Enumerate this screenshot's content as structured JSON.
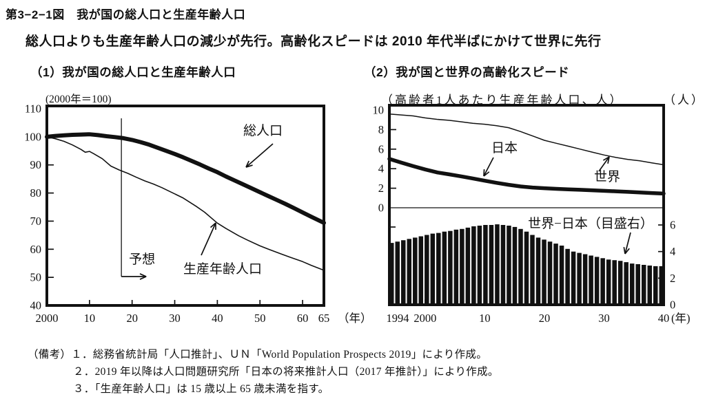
{
  "figure": {
    "title": "第3−2−1図　我が国の総人口と生産年齢人口",
    "subtitle": "総人口よりも生産年齢人口の減少が先行。高齢化スピードは 2010 年代半ばにかけて世界に先行",
    "notes": [
      "（備考）１．総務省統計局「人口推計」、ＵＮ「World Population Prospects 2019」により作成。",
      "２．2019 年以降は人口問題研究所「日本の将来推計人口（2017 年推計）」により作成。",
      "３．「生産年齢人口」は 15 歳以上 65 歳未満を指す。"
    ]
  },
  "chart_data": [
    {
      "id": "japan-population-index",
      "type": "line",
      "title": "（1）我が国の総人口と生産年齢人口",
      "unit_label": "(2000年＝100)",
      "x_axis_unit": "（年）",
      "xlim": [
        2000,
        2065
      ],
      "ylim": [
        40,
        110
      ],
      "grid": false,
      "y_ticks": [
        110,
        100,
        90,
        80,
        70,
        60,
        50,
        40
      ],
      "x_ticks": [
        {
          "year": 2000,
          "label": "2000"
        },
        {
          "year": 2010,
          "label": "10"
        },
        {
          "year": 2020,
          "label": "20"
        },
        {
          "year": 2030,
          "label": "30"
        },
        {
          "year": 2040,
          "label": "40"
        },
        {
          "year": 2050,
          "label": "50"
        },
        {
          "year": 2060,
          "label": "60"
        },
        {
          "year": 2065,
          "label": "65"
        }
      ],
      "forecast_annotation": {
        "label": "予想",
        "start_year": 2017
      },
      "series": [
        {
          "name": "総人口",
          "style": "thick",
          "x": [
            2000,
            2002,
            2004,
            2006,
            2008,
            2010,
            2012,
            2014,
            2016,
            2018,
            2020,
            2022,
            2024,
            2026,
            2028,
            2030,
            2032,
            2034,
            2036,
            2038,
            2040,
            2042,
            2044,
            2046,
            2048,
            2050,
            2052,
            2054,
            2056,
            2058,
            2060,
            2062,
            2065
          ],
          "values": [
            100,
            100.3,
            100.5,
            100.7,
            100.8,
            100.9,
            100.6,
            100.2,
            99.9,
            99.5,
            98.9,
            98.1,
            97.2,
            96.1,
            95.0,
            93.9,
            92.7,
            91.4,
            90.1,
            88.7,
            87.4,
            85.9,
            84.5,
            83.1,
            81.7,
            80.3,
            78.9,
            77.5,
            76.1,
            74.6,
            73.1,
            71.6,
            69.4
          ]
        },
        {
          "name": "生産年齢人口",
          "style": "thin",
          "x": [
            2000,
            2002,
            2004,
            2006,
            2008,
            2009,
            2010,
            2011,
            2013,
            2015,
            2017,
            2019,
            2021,
            2023,
            2025,
            2027,
            2030,
            2032,
            2035,
            2037,
            2040,
            2042,
            2045,
            2047,
            2050,
            2052,
            2055,
            2057,
            2060,
            2062,
            2065
          ],
          "values": [
            100,
            99.3,
            98.4,
            97.1,
            95.5,
            94.5,
            94.8,
            94.0,
            92.2,
            89.6,
            88.2,
            87.0,
            85.6,
            84.3,
            83.2,
            81.9,
            79.7,
            78.2,
            75.3,
            73.2,
            69.3,
            67.4,
            64.8,
            63.3,
            61.2,
            60.0,
            58.3,
            57.2,
            55.6,
            54.3,
            52.5
          ]
        }
      ]
    },
    {
      "id": "aging-speed-japan-world",
      "type": "line+bar",
      "title": "（2）我が国と世界の高齢化スピード",
      "unit_label": "（高齢者1人あたり生産年齢人口、人）",
      "right_axis_unit_label": "（人）",
      "x_axis_unit": "(年)",
      "xlim": [
        1994,
        2040
      ],
      "left_ylim": [
        0,
        10
      ],
      "right_ylim": [
        0,
        6
      ],
      "grid": false,
      "left_y_ticks": [
        10,
        8,
        6,
        4,
        2,
        0
      ],
      "right_y_ticks": [
        6,
        4,
        2,
        0
      ],
      "x_ticks": [
        {
          "year": 1994,
          "label": "1994"
        },
        {
          "year": 2000,
          "label": "2000"
        },
        {
          "year": 2010,
          "label": "10"
        },
        {
          "year": 2020,
          "label": "20"
        },
        {
          "year": 2030,
          "label": "30"
        },
        {
          "year": 2040,
          "label": "40"
        }
      ],
      "series": [
        {
          "name": "日本",
          "style": "thick",
          "axis": "left",
          "x": [
            1994,
            1996,
            1998,
            2000,
            2002,
            2004,
            2006,
            2008,
            2010,
            2012,
            2014,
            2016,
            2018,
            2020,
            2022,
            2024,
            2026,
            2028,
            2030,
            2032,
            2034,
            2036,
            2038,
            2040
          ],
          "values": [
            5.0,
            4.62,
            4.26,
            3.92,
            3.62,
            3.42,
            3.22,
            3.0,
            2.77,
            2.55,
            2.35,
            2.18,
            2.07,
            2.0,
            1.94,
            1.89,
            1.84,
            1.79,
            1.73,
            1.68,
            1.63,
            1.57,
            1.51,
            1.45
          ]
        },
        {
          "name": "世界",
          "style": "thin",
          "axis": "left",
          "x": [
            1994,
            1996,
            1998,
            2000,
            2002,
            2004,
            2006,
            2008,
            2010,
            2012,
            2014,
            2016,
            2018,
            2020,
            2022,
            2024,
            2026,
            2028,
            2030,
            2032,
            2034,
            2036,
            2038,
            2040
          ],
          "values": [
            9.6,
            9.5,
            9.4,
            9.2,
            9.05,
            8.95,
            8.8,
            8.65,
            8.55,
            8.4,
            8.2,
            7.8,
            7.35,
            6.9,
            6.6,
            6.3,
            6.0,
            5.7,
            5.4,
            5.15,
            4.95,
            4.8,
            4.6,
            4.4
          ]
        }
      ],
      "bar_series": {
        "name": "世界−日本（目盛右）",
        "axis": "right",
        "x": [
          1994,
          1995,
          1996,
          1997,
          1998,
          1999,
          2000,
          2001,
          2002,
          2003,
          2004,
          2005,
          2006,
          2007,
          2008,
          2009,
          2010,
          2011,
          2012,
          2013,
          2014,
          2015,
          2016,
          2017,
          2018,
          2019,
          2020,
          2021,
          2022,
          2023,
          2024,
          2025,
          2026,
          2027,
          2028,
          2029,
          2030,
          2031,
          2032,
          2033,
          2034,
          2035,
          2036,
          2037,
          2038,
          2039,
          2040
        ],
        "values": [
          4.65,
          4.75,
          4.85,
          4.95,
          5.05,
          5.15,
          5.25,
          5.35,
          5.4,
          5.5,
          5.55,
          5.65,
          5.7,
          5.8,
          5.9,
          5.95,
          6.0,
          6.0,
          6.05,
          6.0,
          5.95,
          5.85,
          5.7,
          5.5,
          5.25,
          5.05,
          4.9,
          4.75,
          4.6,
          4.45,
          4.2,
          4.0,
          3.9,
          3.8,
          3.7,
          3.6,
          3.5,
          3.4,
          3.35,
          3.3,
          3.2,
          3.1,
          3.05,
          3.0,
          2.95,
          2.9,
          2.9
        ]
      }
    }
  ]
}
